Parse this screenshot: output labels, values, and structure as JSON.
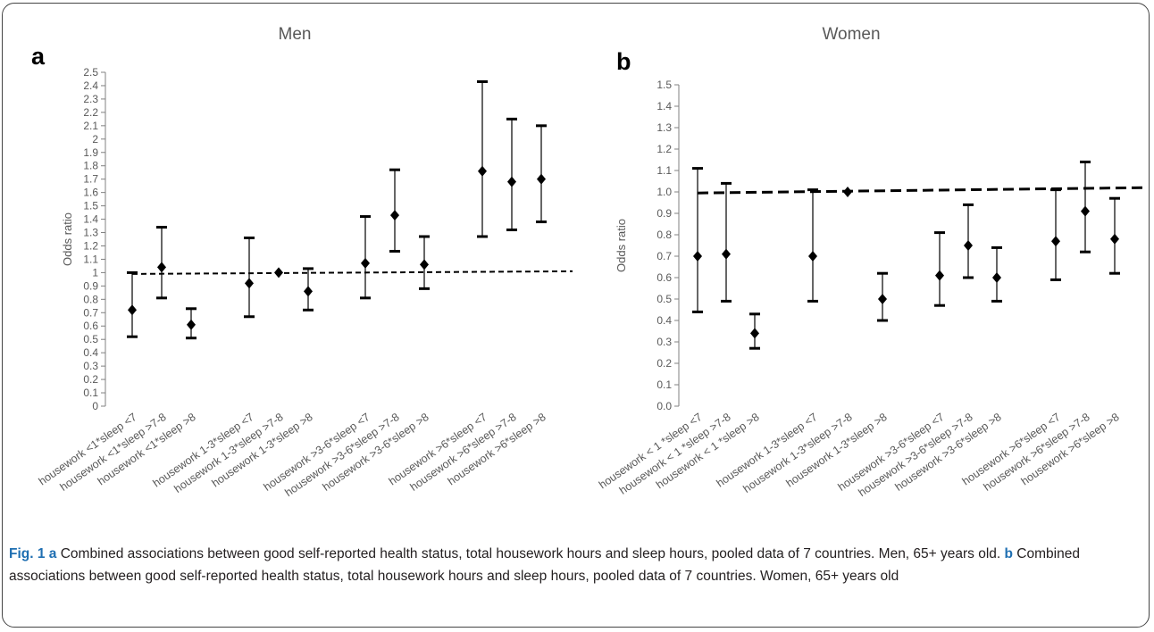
{
  "chart_data": [
    {
      "type": "scatter",
      "panel_label": "a",
      "title": "Men",
      "ylabel": "Odds ratio",
      "ylim": [
        0,
        2.5
      ],
      "y_ticks": [
        "0",
        "0.1",
        "0.2",
        "0.3",
        "0.4",
        "0.5",
        "0.6",
        "0.7",
        "0.8",
        "0.9",
        "1",
        "1.1",
        "1.2",
        "1.3",
        "1.4",
        "1.5",
        "1.6",
        "1.7",
        "1.8",
        "1.9",
        "2",
        "2.1",
        "2.2",
        "2.3",
        "2.4",
        "2.5"
      ],
      "categories": [
        "housework <1*sleep <7",
        "housework <1*sleep >7-8",
        "housework <1*sleep >8",
        "housework 1-3*sleep <7",
        "housework 1-3*sleep >7-8",
        "housework 1-3*sleep >8",
        "housework >3-6*sleep <7",
        "housework >3-6*sleep >7-8",
        "housework >3-6*sleep >8",
        "housework >6*sleep <7",
        "housework >6*sleep >7-8",
        "housework >6*sleep >8"
      ],
      "groups": [
        [
          0,
          1,
          2
        ],
        [
          3,
          4,
          5
        ],
        [
          6,
          7,
          8
        ],
        [
          9,
          10,
          11
        ]
      ],
      "values": [
        0.72,
        1.04,
        0.61,
        0.92,
        1.0,
        0.86,
        1.07,
        1.43,
        1.06,
        1.76,
        1.68,
        1.7
      ],
      "lower": [
        0.52,
        0.81,
        0.51,
        0.67,
        1.0,
        0.72,
        0.81,
        1.16,
        0.88,
        1.27,
        1.32,
        1.38
      ],
      "upper": [
        1.0,
        1.34,
        0.73,
        1.26,
        1.0,
        1.03,
        1.42,
        1.77,
        1.27,
        2.43,
        2.15,
        2.1
      ],
      "reference_line": {
        "y_start": 0.99,
        "y_end": 1.01,
        "style": "dashed"
      },
      "grid": false
    },
    {
      "type": "scatter",
      "panel_label": "b",
      "title": "Women",
      "ylabel": "Odds ratio",
      "ylim": [
        0,
        1.5
      ],
      "y_ticks": [
        "0.0",
        "0.1",
        "0.2",
        "0.3",
        "0.4",
        "0.5",
        "0.6",
        "0.7",
        "0.8",
        "0.9",
        "1.0",
        "1.1",
        "1.2",
        "1.3",
        "1.4",
        "1.5"
      ],
      "categories": [
        "housework < 1 *sleep <7",
        "housework < 1 *sleep >7-8",
        "housework < 1 *sleep >8",
        "housework 1-3*sleep <7",
        "housework 1-3*sleep >7-8",
        "housework 1-3*sleep >8",
        "housework >3-6*sleep <7",
        "housework >3-6*sleep >7-8",
        "housework >3-6*sleep >8",
        "housework >6*sleep <7",
        "housework >6*sleep >7-8",
        "housework >6*sleep >8"
      ],
      "groups": [
        [
          0,
          1,
          2
        ],
        [
          3,
          4,
          5
        ],
        [
          6,
          7,
          8
        ],
        [
          9,
          10,
          11
        ]
      ],
      "values": [
        0.7,
        0.71,
        0.34,
        0.7,
        1.0,
        0.5,
        0.61,
        0.75,
        0.6,
        0.77,
        0.91,
        0.78
      ],
      "lower": [
        0.44,
        0.49,
        0.27,
        0.49,
        1.0,
        0.4,
        0.47,
        0.6,
        0.49,
        0.59,
        0.72,
        0.62
      ],
      "upper": [
        1.11,
        1.04,
        0.43,
        1.01,
        1.0,
        0.62,
        0.81,
        0.94,
        0.74,
        1.01,
        1.14,
        0.97
      ],
      "reference_line": {
        "y_start": 0.995,
        "y_end": 1.02,
        "style": "dashed"
      },
      "grid": false
    }
  ],
  "caption": {
    "fig_label": "Fig. 1",
    "a_letter": "a",
    "a_text": " Combined associations between good self-reported health status, total housework hours and sleep hours, pooled data of 7 countries. Men, 65+ years old. ",
    "b_letter": "b",
    "b_text": " Combined associations between good self-reported health status, total housework hours and sleep hours, pooled data of 7 countries. Women, 65+ years old"
  },
  "colors": {
    "marker": "#000000",
    "axis": "#595959",
    "caption_accent": "#1f6fb2"
  }
}
